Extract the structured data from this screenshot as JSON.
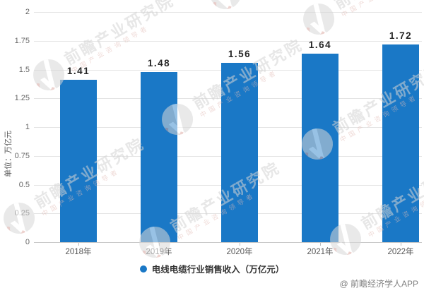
{
  "chart_data": {
    "type": "bar",
    "categories": [
      "2018年",
      "2019年",
      "2020年",
      "2021年",
      "2022年"
    ],
    "values": [
      1.41,
      1.48,
      1.56,
      1.64,
      1.72
    ],
    "value_labels": [
      "1.41",
      "1.48",
      "1.56",
      "1.64",
      "1.72"
    ],
    "series_name": "电线电缆行业销售收入（万亿元）",
    "title": "",
    "xlabel": "",
    "ylabel": "单位：万亿元",
    "ylim": [
      0,
      2
    ],
    "ytick_interval": 0.25,
    "yticks": [
      "0",
      "0.25",
      "0.5",
      "0.75",
      "1",
      "1.25",
      "1.5",
      "1.75",
      "2"
    ],
    "grid": true,
    "legend_position": "bottom",
    "bar_color": "#1a78c6"
  },
  "legend": {
    "label": "电线电缆行业销售收入（万亿元）"
  },
  "footer": {
    "copyright": "@ 前瞻经济学人APP"
  },
  "watermark": {
    "text": "前瞻产业研究院",
    "subtext": "中国产业咨询领导者"
  },
  "colors": {
    "bar": "#1a78c6",
    "gridline": "#e4e4e4",
    "axis_line": "#c9c9c9",
    "tick_label": "#666666",
    "data_label": "#262626",
    "watermark_text": "#d4d4d4",
    "watermark_subtext": "#e2bcb6",
    "copyright": "#7f7f7f"
  }
}
